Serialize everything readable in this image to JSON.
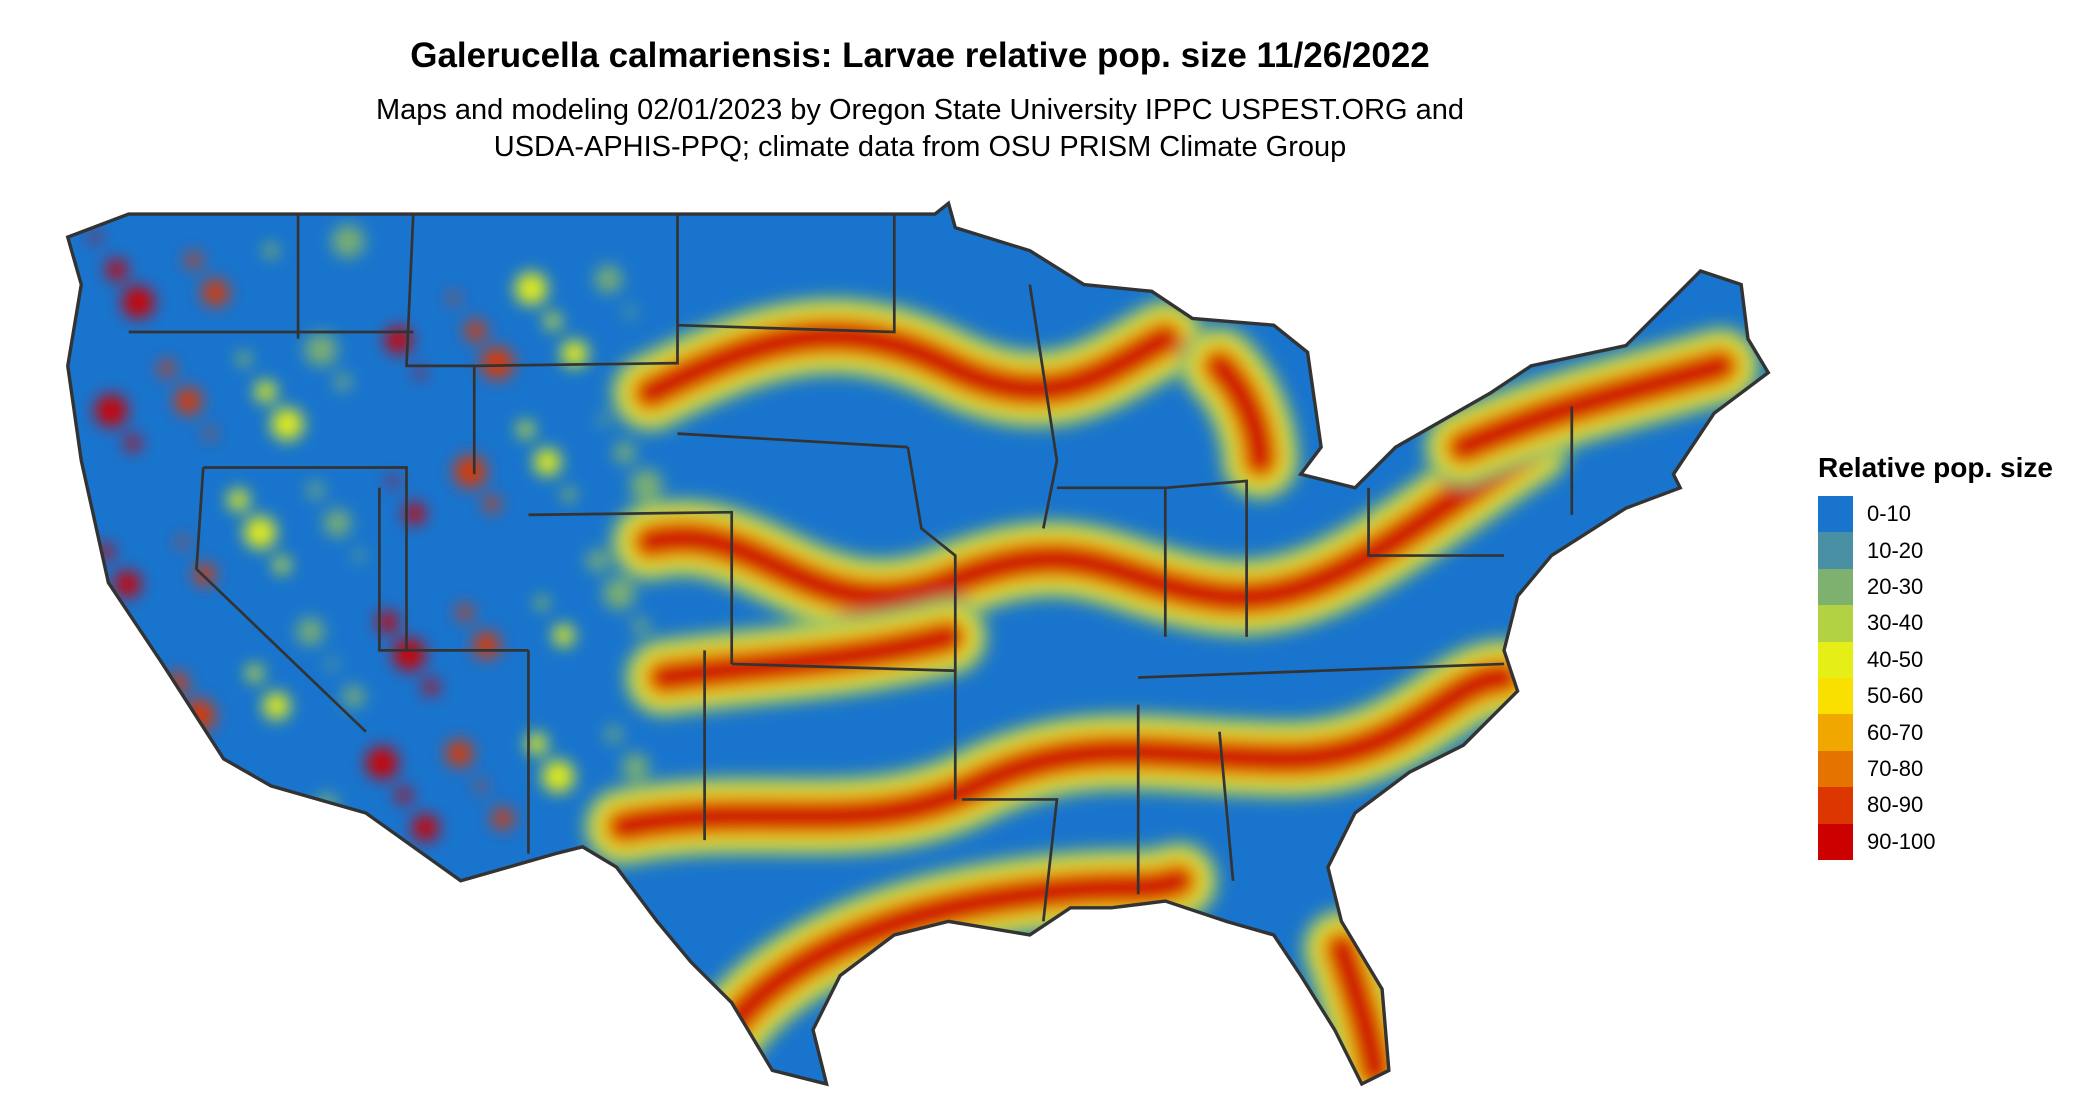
{
  "header": {
    "title": "Galerucella calmariensis: Larvae relative pop. size 11/26/2022",
    "subtitle_line1": "Maps and modeling 02/01/2023 by Oregon State University IPPC USPEST.ORG and",
    "subtitle_line2": "USDA-APHIS-PPQ; climate data from OSU PRISM Climate Group"
  },
  "chart_data": {
    "type": "heatmap",
    "title": "Galerucella calmariensis: Larvae relative pop. size 11/26/2022",
    "region": "Contiguous United States",
    "legend_title": "Relative pop. size",
    "legend_placement": "right",
    "classes": [
      {
        "label": "0-10",
        "color": "#1874CD"
      },
      {
        "label": "10-20",
        "color": "#4A90A4"
      },
      {
        "label": "20-30",
        "color": "#7EB070"
      },
      {
        "label": "30-40",
        "color": "#B2D243"
      },
      {
        "label": "40-50",
        "color": "#E5EE16"
      },
      {
        "label": "50-60",
        "color": "#FAE000"
      },
      {
        "label": "60-70",
        "color": "#F0A800"
      },
      {
        "label": "70-80",
        "color": "#E57300"
      },
      {
        "label": "80-90",
        "color": "#DC3700"
      },
      {
        "label": "90-100",
        "color": "#CD0000"
      }
    ]
  }
}
